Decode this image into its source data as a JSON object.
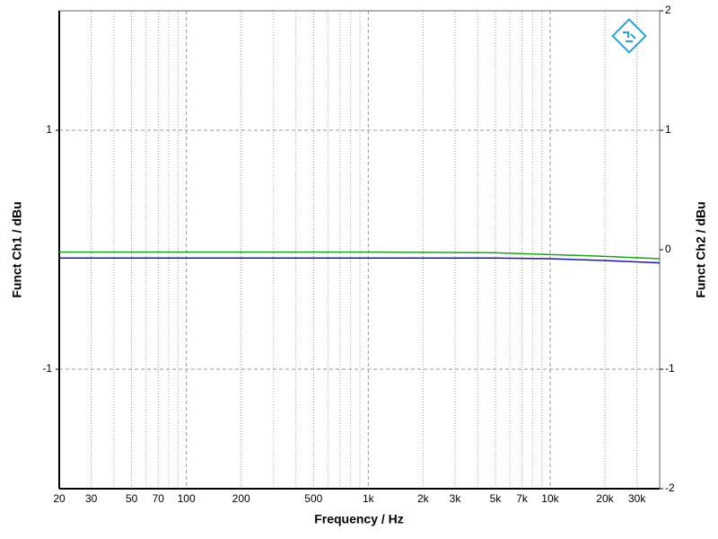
{
  "chart_data": {
    "type": "line",
    "x_label": "Frequency / Hz",
    "y_label": "Funct Ch1 / dBu",
    "y2_label": "Funct Ch2 / dBu",
    "xscale": "log",
    "xlim": [
      20,
      40000
    ],
    "xticks": [
      20,
      30,
      50,
      70,
      100,
      200,
      500,
      {
        "value": 1000,
        "label": "1k"
      },
      {
        "value": 2000,
        "label": "2k"
      },
      {
        "value": 3000,
        "label": "3k"
      },
      {
        "value": 5000,
        "label": "5k"
      },
      {
        "value": 7000,
        "label": "7k"
      },
      {
        "value": 10000,
        "label": "10k"
      },
      {
        "value": 20000,
        "label": "20k"
      },
      {
        "value": 30000,
        "label": "30k"
      }
    ],
    "xminor": [
      40,
      60,
      80,
      90,
      300,
      400,
      600,
      700,
      800,
      900,
      4000,
      6000,
      8000,
      9000,
      40000
    ],
    "ylim": [
      -2,
      2
    ],
    "yticks": [
      -1,
      1
    ],
    "y2lim": [
      -2,
      2
    ],
    "y2ticks": [
      -2,
      -1,
      0,
      1,
      2
    ],
    "grid": true,
    "x": [
      20,
      100,
      1000,
      5000,
      10000,
      20000,
      40000
    ],
    "series": [
      {
        "name": "Ch1",
        "color": "#1a1aa0",
        "values": [
          -0.07,
          -0.07,
          -0.07,
          -0.07,
          -0.075,
          -0.09,
          -0.11
        ]
      },
      {
        "name": "Ch2",
        "color": "#1fa01f",
        "axis": "y2",
        "values": [
          -0.02,
          -0.02,
          -0.02,
          -0.025,
          -0.04,
          -0.055,
          -0.075
        ]
      }
    ]
  }
}
